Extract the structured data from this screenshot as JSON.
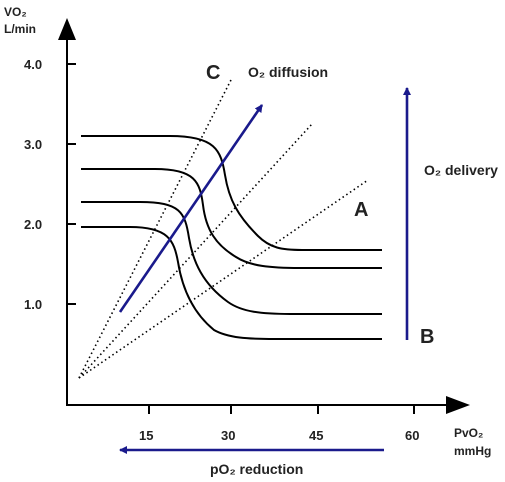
{
  "diagram": {
    "y_axis": {
      "title_line1": "VO₂",
      "title_line2": "L/min",
      "ticks": [
        "1.0",
        "2.0",
        "3.0",
        "4.0"
      ]
    },
    "x_axis": {
      "title_line1": "PvO₂",
      "title_line2": "mmHg",
      "ticks": [
        "15",
        "30",
        "45",
        "60"
      ]
    },
    "labels": {
      "point_a": "A",
      "point_b": "B",
      "point_c": "C",
      "o2_diffusion": "O₂ diffusion",
      "o2_delivery": "O₂ delivery",
      "po2_reduction": "pO₂ reduction"
    },
    "colors": {
      "axis": "#000000",
      "curves": "#000000",
      "arrows": "#1a1a8c",
      "text": "#222222"
    }
  }
}
